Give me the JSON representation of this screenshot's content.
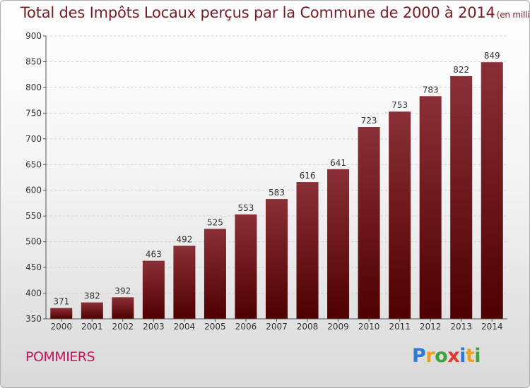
{
  "title": "Total des Impôts Locaux perçus par la Commune de 2000 à 2014",
  "unit_note": "(en milliers d'€)",
  "commune": "POMMIERS",
  "logo": {
    "text": "Proxiti",
    "letters": [
      {
        "ch": "P",
        "color": "#2e7bd6"
      },
      {
        "ch": "r",
        "color": "#f0a020"
      },
      {
        "ch": "o",
        "color": "#3aa63a"
      },
      {
        "ch": "x",
        "color": "#e8352b"
      },
      {
        "ch": "i",
        "color": "#2e7bd6"
      },
      {
        "ch": "t",
        "color": "#f0a020"
      },
      {
        "ch": "i",
        "color": "#3aa63a"
      }
    ]
  },
  "colors": {
    "bar_top": "#8a2f37",
    "bar_bottom": "#4e0000",
    "title": "#7a1b24"
  },
  "chart_data": {
    "type": "bar",
    "title": "Total des Impôts Locaux perçus par la Commune de 2000 à 2014",
    "xlabel": "",
    "ylabel": "en milliers d'€",
    "categories": [
      "2000",
      "2001",
      "2002",
      "2003",
      "2004",
      "2005",
      "2006",
      "2007",
      "2008",
      "2009",
      "2010",
      "2011",
      "2012",
      "2013",
      "2014"
    ],
    "values": [
      371,
      382,
      392,
      463,
      492,
      525,
      553,
      583,
      616,
      641,
      723,
      753,
      783,
      822,
      849
    ],
    "ylim": [
      350,
      900
    ],
    "yticks": [
      350,
      400,
      450,
      500,
      550,
      600,
      650,
      700,
      750,
      800,
      850,
      900
    ],
    "grid": true
  }
}
